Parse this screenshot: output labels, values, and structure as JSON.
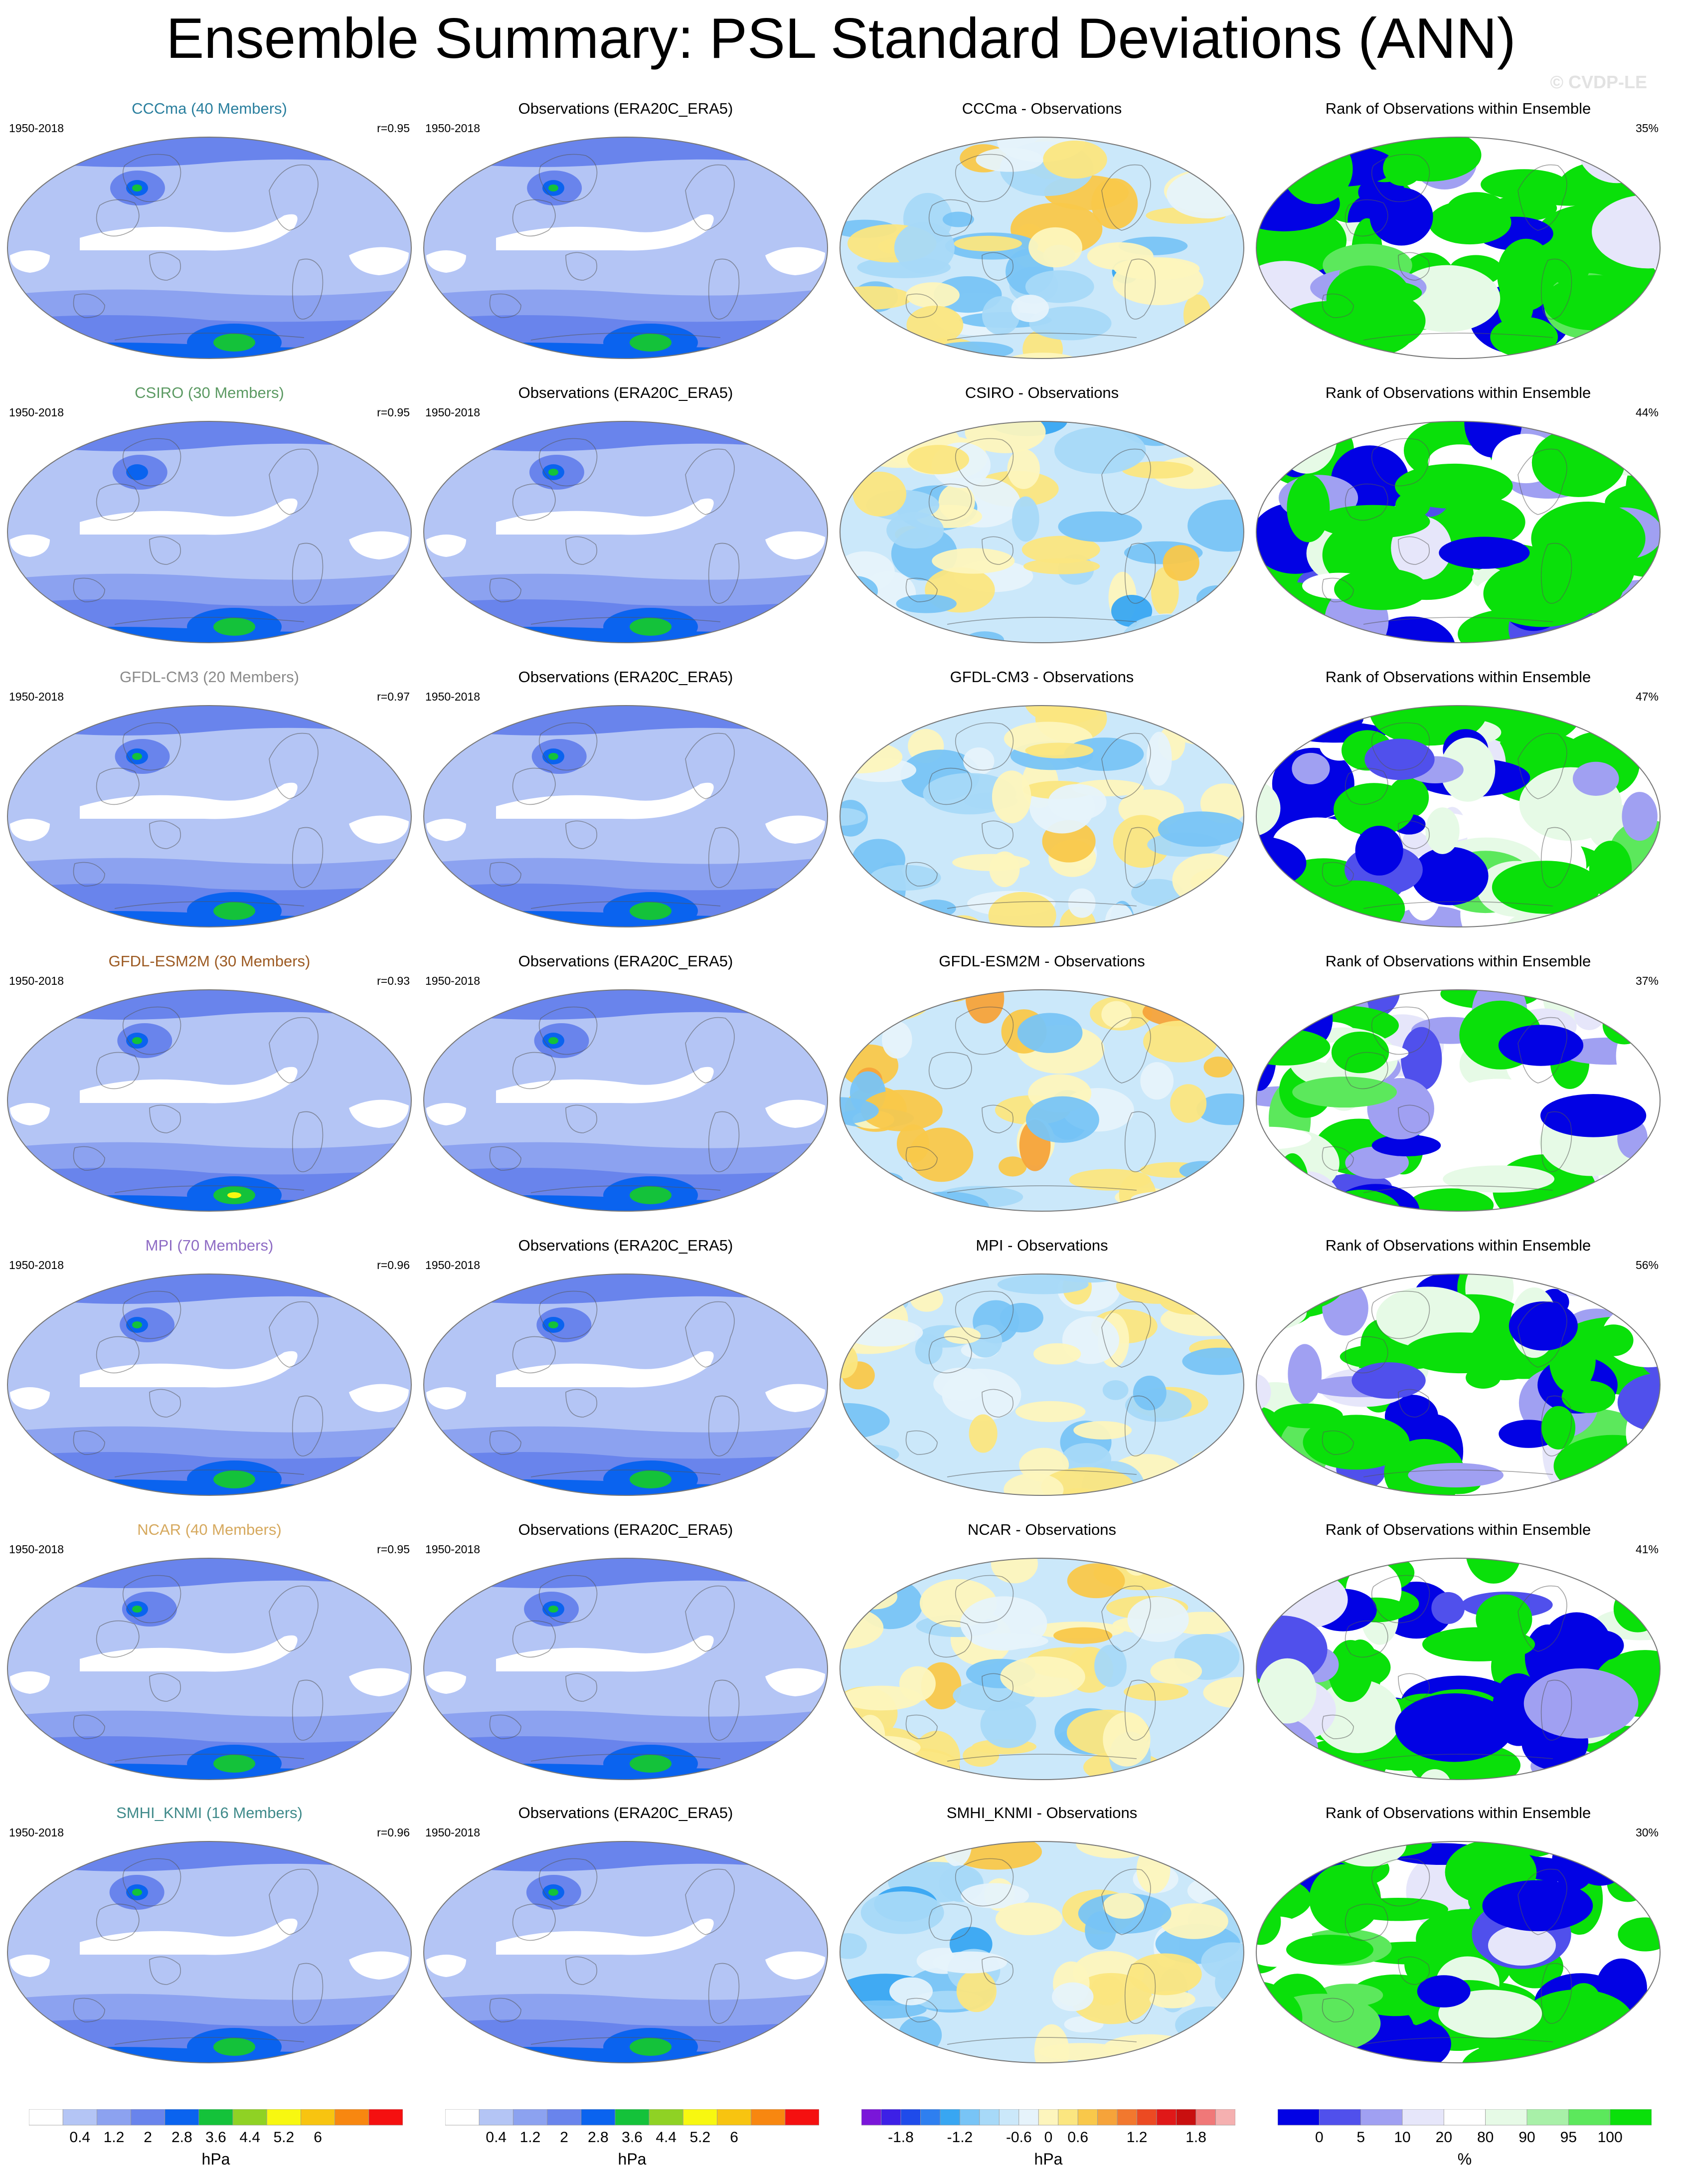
{
  "title": "Ensemble Summary: PSL Standard Deviations (ANN)",
  "watermark": "© CVDP-LE",
  "columns": {
    "obs_title": "Observations (ERA20C_ERA5)",
    "rank_title": "Rank of Observations within Ensemble"
  },
  "rows": [
    {
      "model": "CCCma",
      "members": "CCCma (40 Members)",
      "period": "1950-2018",
      "r": "r=0.95",
      "diff_title": "CCCma - Observations",
      "rank_pct": "35%",
      "color": "#2a7f9e"
    },
    {
      "model": "CSIRO",
      "members": "CSIRO (30 Members)",
      "period": "1950-2018",
      "r": "r=0.95",
      "diff_title": "CSIRO - Observations",
      "rank_pct": "44%",
      "color": "#5c9a63"
    },
    {
      "model": "GFDL-CM3",
      "members": "GFDL-CM3 (20 Members)",
      "period": "1950-2018",
      "r": "r=0.97",
      "diff_title": "GFDL-CM3 - Observations",
      "rank_pct": "47%",
      "color": "#8a8a8a"
    },
    {
      "model": "GFDL-ESM2M",
      "members": "GFDL-ESM2M (30 Members)",
      "period": "1950-2018",
      "r": "r=0.93",
      "diff_title": "GFDL-ESM2M - Observations",
      "rank_pct": "37%",
      "color": "#9c5a22"
    },
    {
      "model": "MPI",
      "members": "MPI (70 Members)",
      "period": "1950-2018",
      "r": "r=0.96",
      "diff_title": "MPI - Observations",
      "rank_pct": "56%",
      "color": "#8e6bc4"
    },
    {
      "model": "NCAR",
      "members": "NCAR (40 Members)",
      "period": "1950-2018",
      "r": "r=0.95",
      "diff_title": "NCAR - Observations",
      "rank_pct": "41%",
      "color": "#d6a95e"
    },
    {
      "model": "SMHI_KNMI",
      "members": "SMHI_KNMI (16 Members)",
      "period": "1950-2018",
      "r": "r=0.96",
      "diff_title": "SMHI_KNMI - Observations",
      "rank_pct": "30%",
      "color": "#3f8a8a"
    }
  ],
  "chart_data": [
    {
      "type": "heatmap",
      "name": "Standard deviation colorbar",
      "unit": "hPa",
      "tick_labels": [
        "0.4",
        "1.2",
        "2",
        "2.8",
        "3.6",
        "4.4",
        "5.2",
        "6"
      ],
      "colors": [
        "#ffffff",
        "#b4c5f5",
        "#8ca2f0",
        "#6984ec",
        "#0a63ef",
        "#14c23a",
        "#8fd224",
        "#f8f810",
        "#f8c410",
        "#f88710",
        "#f51010"
      ]
    },
    {
      "type": "heatmap",
      "name": "Difference colorbar",
      "unit": "hPa",
      "tick_labels": [
        "-1.8",
        "-1.2",
        "-0.6",
        "0",
        "0.6",
        "1.2",
        "1.8"
      ],
      "colors": [
        "#7a16d9",
        "#3d20e6",
        "#1f4bea",
        "#2e7ff0",
        "#38a6f2",
        "#78c4f6",
        "#a7d9f8",
        "#cbe8fa",
        "#e6f3fb",
        "#fdf5bd",
        "#fbe680",
        "#f9c84a",
        "#f6a33a",
        "#f2782e",
        "#ec4a22",
        "#e01818",
        "#c90f0f",
        "#f07878",
        "#f5b0b0"
      ]
    },
    {
      "type": "heatmap",
      "name": "Rank colorbar",
      "unit": "%",
      "tick_labels": [
        "0",
        "5",
        "10",
        "20",
        "80",
        "90",
        "95",
        "100"
      ],
      "colors": [
        "#0202e4",
        "#5050ec",
        "#a0a0f2",
        "#e6e6fa",
        "#ffffff",
        "#e6fae6",
        "#a8f0a8",
        "#5ce85c",
        "#0ae00a"
      ]
    }
  ]
}
